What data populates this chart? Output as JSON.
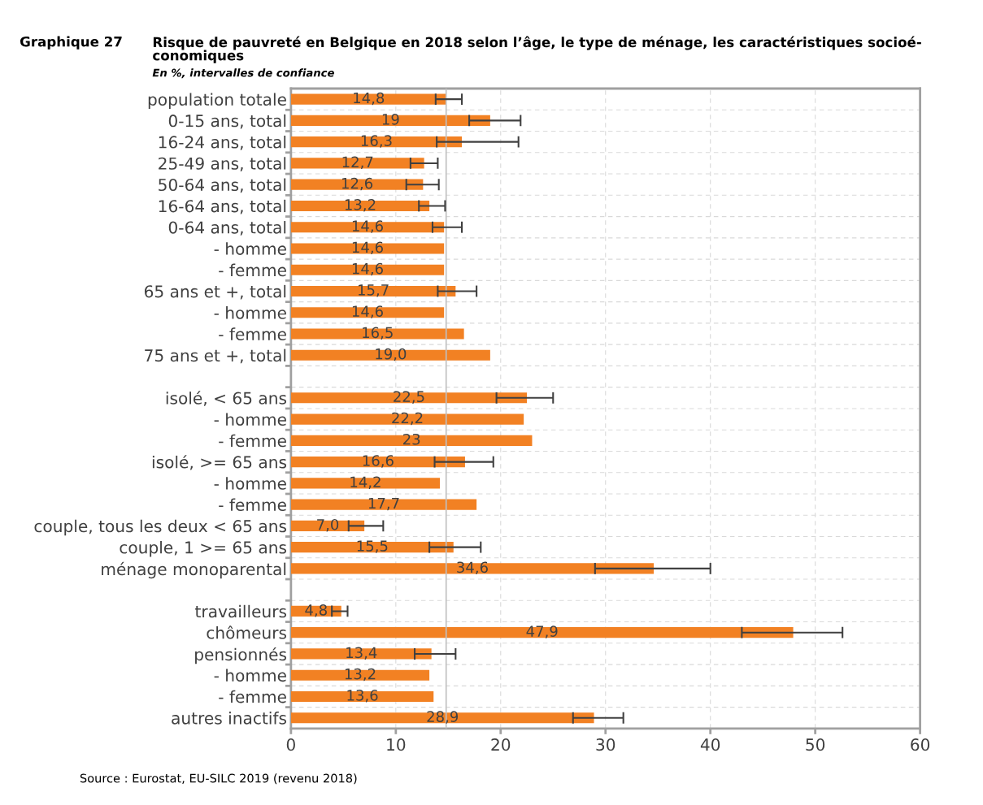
{
  "chart_data": {
    "type": "bar",
    "orientation": "horizontal",
    "title": "Risque de pauvreté en Belgique en 2018 selon l’âge, le type de ménage, les caractéristiques socioé-\nconomiques",
    "subtitle": "En %, intervalles de confiance",
    "annotations": [
      "Graphique 27",
      "Source : Eurostat, EU-SILC 2019 (revenu 2018)"
    ],
    "categories": [
      "population totale",
      "0-15 ans, total",
      "16-24 ans, total",
      "25-49 ans, total",
      "50-64 ans, total",
      "16-64 ans, total",
      "0-64 ans, total",
      "- homme",
      "- femme",
      "65 ans et +, total",
      "- homme",
      "- femme",
      "75 ans et +, total",
      null,
      "isolé, < 65 ans",
      "- homme",
      "- femme",
      "isolé, >= 65 ans",
      "- homme",
      "- femme",
      "couple, tous les deux < 65 ans",
      "couple, 1 >= 65 ans",
      "ménage monoparental",
      null,
      "travailleurs",
      "chômeurs",
      "pensionnés",
      "- homme",
      "- femme",
      "autres inactifs"
    ],
    "series": [
      {
        "color": "#f28123",
        "values": [
          14.8,
          19,
          16.3,
          12.7,
          12.6,
          13.2,
          14.6,
          14.6,
          14.6,
          15.7,
          14.6,
          16.5,
          19.0,
          null,
          22.5,
          22.2,
          23,
          16.6,
          14.2,
          17.7,
          7.0,
          15.5,
          34.6,
          null,
          4.8,
          47.9,
          13.4,
          13.2,
          13.6,
          28.9
        ],
        "value_labels": [
          "14,8",
          "19",
          "16,3",
          "12,7",
          "12,6",
          "13,2",
          "14,6",
          "14,6",
          "14,6",
          "15,7",
          "14,6",
          "16,5",
          "19,0",
          null,
          "22,5",
          "22,2",
          "23",
          "16,6",
          "14,2",
          "17,7",
          "7,0",
          "15,5",
          "34,6",
          null,
          "4,8",
          "47,9",
          "13,4",
          "13,2",
          "13,6",
          "28,9"
        ],
        "errors": [
          [
            13.8,
            16.3
          ],
          [
            17.0,
            21.9
          ],
          [
            13.9,
            21.7
          ],
          [
            11.4,
            14.0
          ],
          [
            11.0,
            14.1
          ],
          [
            12.2,
            14.7
          ],
          [
            13.5,
            16.3
          ],
          null,
          null,
          [
            14.0,
            17.7
          ],
          null,
          null,
          null,
          null,
          [
            19.6,
            25.0
          ],
          null,
          null,
          [
            13.7,
            19.3
          ],
          null,
          null,
          [
            5.5,
            8.8
          ],
          [
            13.2,
            18.1
          ],
          [
            29.0,
            40.0
          ],
          null,
          [
            3.9,
            5.4
          ],
          [
            43.0,
            52.6
          ],
          [
            11.8,
            15.7
          ],
          null,
          null,
          [
            26.9,
            31.7
          ]
        ]
      }
    ],
    "ref_lines": [
      {
        "axis": "x",
        "value": 14.8,
        "color": "#c0c0c0"
      }
    ],
    "xlim": [
      0,
      60
    ],
    "xticks": [
      0,
      10,
      20,
      30,
      40,
      50,
      60
    ],
    "grid": true
  }
}
